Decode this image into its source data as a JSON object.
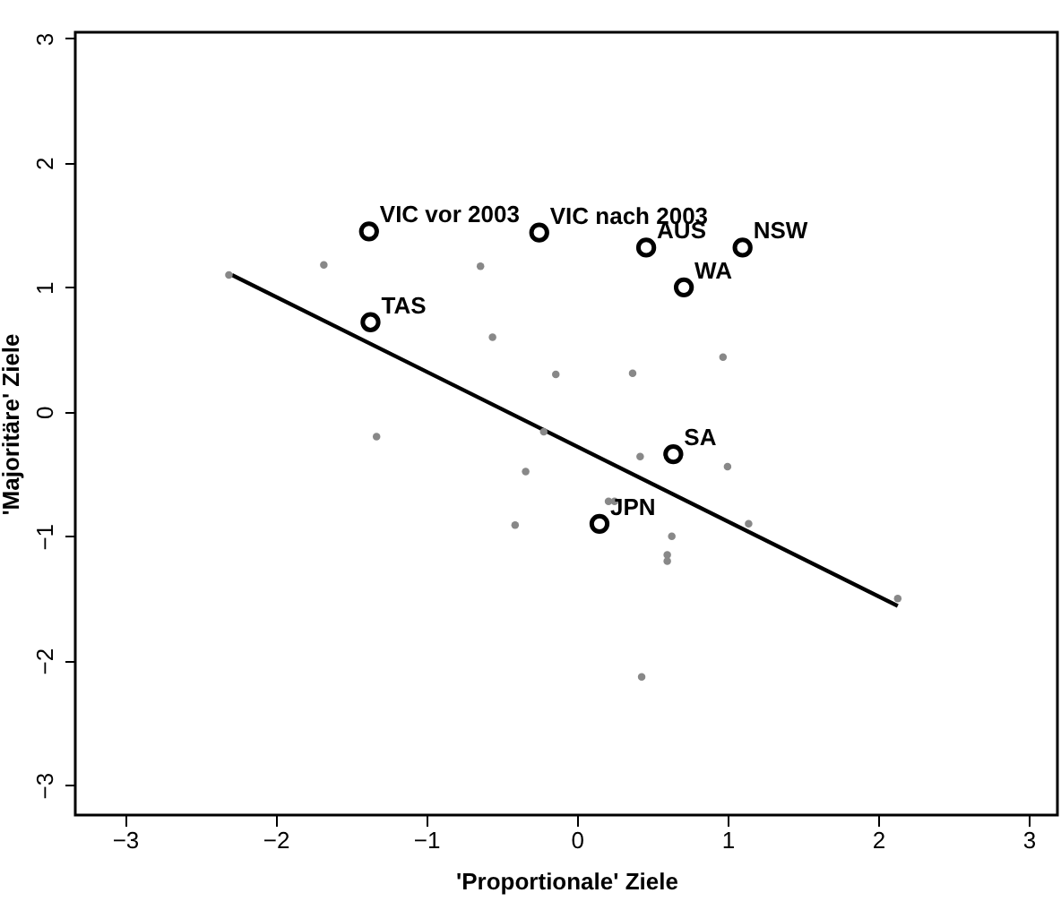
{
  "chart_data": {
    "type": "scatter",
    "xlabel": "'Proportionale' Ziele",
    "ylabel": "'Majoritäre' Ziele",
    "xlim": [
      -3.33,
      3.19
    ],
    "ylim": [
      -3.24,
      3.05
    ],
    "xticks": [
      -3,
      -2,
      -1,
      0,
      1,
      2,
      3
    ],
    "yticks": [
      -3,
      -2,
      -1,
      0,
      1,
      2,
      3
    ],
    "grid": false,
    "series": [
      {
        "marker": "circle",
        "color": "#888888",
        "x": [
          -2.31,
          -1.68,
          -0.64,
          -0.56,
          -0.14,
          -1.33,
          -0.22,
          -0.34,
          -0.41,
          0.37,
          0.97,
          0.42,
          1.0,
          0.21,
          0.25,
          0.63,
          0.6,
          0.6,
          1.14,
          2.13,
          0.43
        ],
        "values": [
          1.1,
          1.18,
          1.17,
          0.6,
          0.3,
          -0.2,
          -0.16,
          -0.48,
          -0.91,
          0.31,
          0.44,
          -0.36,
          -0.44,
          -0.72,
          -0.72,
          -1.0,
          -1.15,
          -1.2,
          -0.9,
          -1.5,
          -2.13
        ]
      },
      {
        "marker": "circle",
        "color": "#000000",
        "x": [
          -1.38,
          -0.25,
          -1.37,
          0.46,
          1.1,
          0.71,
          0.64,
          0.15
        ],
        "values": [
          1.45,
          1.44,
          0.72,
          1.32,
          1.32,
          1.0,
          -0.34,
          -0.9
        ]
      },
      {
        "type": "line",
        "marker": "none",
        "line_style": "solid",
        "color": "#000000",
        "x": [
          -2.29,
          2.13
        ],
        "values": [
          1.1,
          -1.56
        ]
      }
    ],
    "annotations": [
      {
        "text": "VIC vor 2003",
        "x": -1.38,
        "y": 1.45
      },
      {
        "text": "VIC nach 2003",
        "x": -0.25,
        "y": 1.44
      },
      {
        "text": "TAS",
        "x": -1.37,
        "y": 0.72
      },
      {
        "text": "AUS",
        "x": 0.46,
        "y": 1.32
      },
      {
        "text": "NSW",
        "x": 1.1,
        "y": 1.32
      },
      {
        "text": "WA",
        "x": 0.71,
        "y": 1.0
      },
      {
        "text": "SA",
        "x": 0.64,
        "y": -0.34
      },
      {
        "text": "JPN",
        "x": 0.15,
        "y": -0.9
      }
    ]
  }
}
